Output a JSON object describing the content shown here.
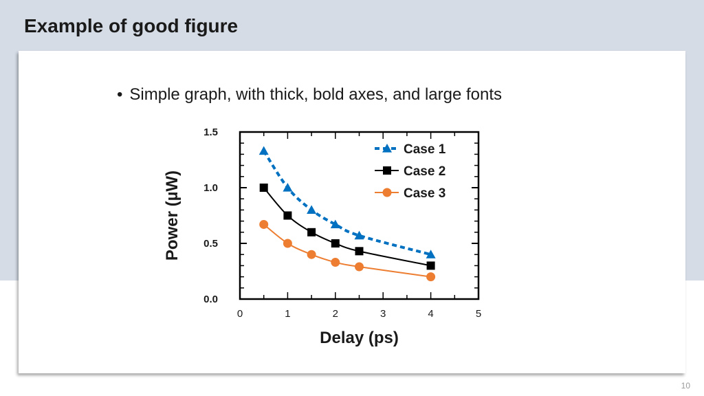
{
  "slide": {
    "title": "Example of good figure",
    "bullet": "Simple graph, with thick, bold axes, and large fonts",
    "page_number": "10"
  },
  "chart_data": {
    "type": "line",
    "xlabel": "Delay (ps)",
    "ylabel": "Power (µW)",
    "xlim": [
      0,
      5
    ],
    "ylim": [
      0,
      1.5
    ],
    "x_ticks": [
      "0",
      "1",
      "2",
      "3",
      "4",
      "5"
    ],
    "y_ticks": [
      "0.0",
      "0.5",
      "1.0",
      "1.5"
    ],
    "x_tick_values": [
      0,
      1,
      2,
      3,
      4,
      5
    ],
    "y_tick_values": [
      0,
      0.5,
      1.0,
      1.5
    ],
    "grid": false,
    "legend_position": "top-right",
    "x": [
      0.5,
      1.0,
      1.5,
      2.0,
      2.5,
      4.0
    ],
    "series": [
      {
        "name": "Case 1",
        "values": [
          1.33,
          1.0,
          0.8,
          0.67,
          0.57,
          0.4
        ],
        "color": "#0070c0",
        "marker": "triangle",
        "line": "dashed"
      },
      {
        "name": "Case 2",
        "values": [
          1.0,
          0.75,
          0.6,
          0.5,
          0.43,
          0.3
        ],
        "color": "#000000",
        "marker": "square",
        "line": "solid"
      },
      {
        "name": "Case 3",
        "values": [
          0.67,
          0.5,
          0.4,
          0.33,
          0.29,
          0.2
        ],
        "color": "#ed7d31",
        "marker": "circle",
        "line": "solid"
      }
    ]
  }
}
